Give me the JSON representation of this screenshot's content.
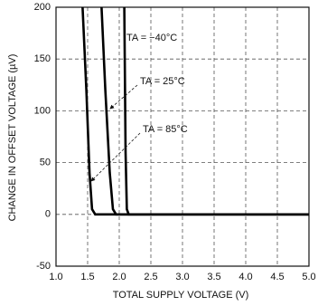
{
  "chart_data": {
    "type": "line",
    "xlabel": "TOTAL SUPPLY VOLTAGE (V)",
    "ylabel": "CHANGE IN OFFSET VOLTAGE (µV)",
    "xlim": [
      1,
      5
    ],
    "ylim": [
      -50,
      200
    ],
    "xticks": [
      {
        "value": 1,
        "label": "1.0"
      },
      1.5,
      {
        "value": 2,
        "label": "2.0"
      },
      2.5,
      {
        "value": 3,
        "label": "3.0"
      },
      3.5,
      {
        "value": 4,
        "label": "4.0"
      },
      4.5,
      {
        "value": 5,
        "label": "5.0"
      }
    ],
    "yticks": [
      -50,
      0,
      50,
      100,
      150,
      200
    ],
    "grid": true,
    "series": [
      {
        "name": "TA = −40°C",
        "color": "#000000",
        "x": [
          2.08,
          2.1,
          2.12,
          2.15,
          5
        ],
        "values": [
          200,
          60,
          5,
          0,
          0
        ]
      },
      {
        "name": "TA = 25°C",
        "color": "#000000",
        "x": [
          1.72,
          1.78,
          1.85,
          1.9,
          1.95,
          5
        ],
        "values": [
          200,
          120,
          40,
          5,
          0,
          0
        ]
      },
      {
        "name": "TA = 85°C",
        "color": "#000000",
        "x": [
          1.42,
          1.48,
          1.53,
          1.57,
          1.62,
          5
        ],
        "values": [
          200,
          120,
          40,
          5,
          0,
          0
        ]
      }
    ]
  }
}
